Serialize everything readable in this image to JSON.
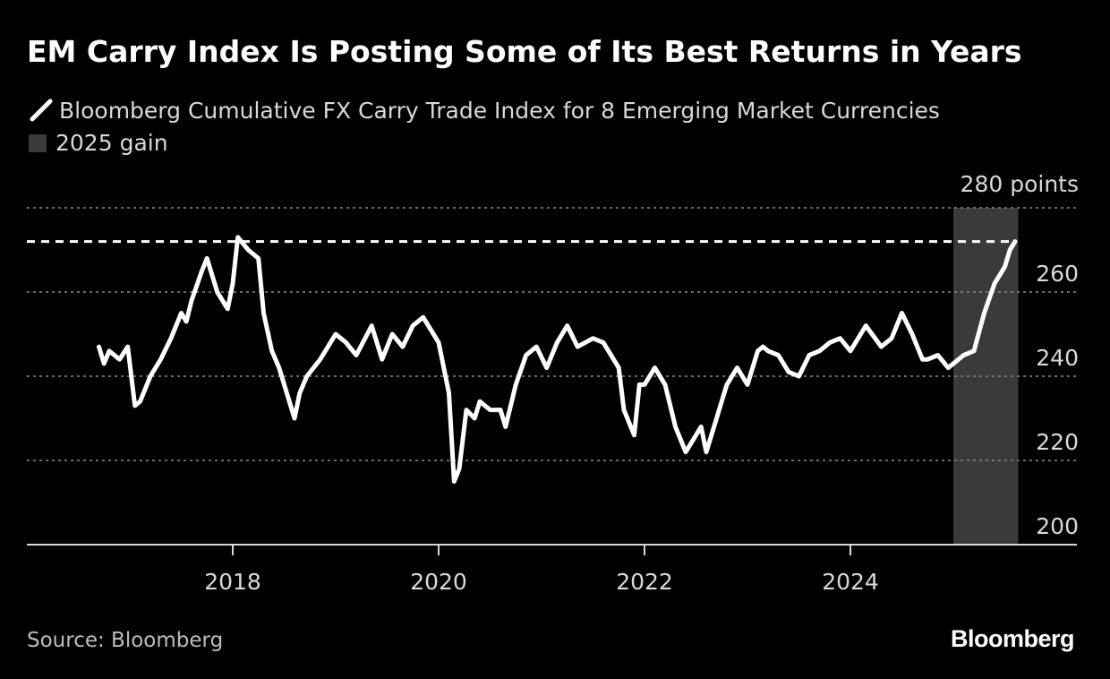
{
  "title": "EM Carry Index Is Posting Some of Its Best Returns in Years",
  "legend": {
    "series_label": "Bloomberg Cumulative FX Carry Trade Index for 8 Emerging Market Currencies",
    "shade_label": "2025 gain"
  },
  "source": "Source: Bloomberg",
  "brand": "Bloomberg",
  "colors": {
    "background": "#000000",
    "line": "#ffffff",
    "grid": "#8a8a8a",
    "shade": "#3a3a3a",
    "axis_text": "#d9d9d9"
  },
  "chart_data": {
    "type": "line",
    "title": "EM Carry Index Is Posting Some of Its Best Returns in Years",
    "ylabel": "points",
    "y_unit_label": "280 points",
    "ylim": [
      200,
      280
    ],
    "xlim": [
      2016.0,
      2026.2
    ],
    "yticks": [
      200,
      220,
      240,
      260
    ],
    "xticks": [
      {
        "value": 2018.0,
        "label": "2018"
      },
      {
        "value": 2020.0,
        "label": "2020"
      },
      {
        "value": 2022.0,
        "label": "2022"
      },
      {
        "value": 2024.0,
        "label": "2024"
      }
    ],
    "grid": true,
    "reference_line": {
      "y": 272,
      "style": "dashed",
      "label": ""
    },
    "shaded_region": {
      "x_start": 2025.0,
      "x_end": 2025.63,
      "label": "2025 gain"
    },
    "series": [
      {
        "name": "Bloomberg Cumulative FX Carry Trade Index for 8 Emerging Market Currencies",
        "x": [
          2016.7,
          2016.75,
          2016.8,
          2016.9,
          2016.98,
          2017.0,
          2017.05,
          2017.1,
          2017.2,
          2017.3,
          2017.4,
          2017.5,
          2017.55,
          2017.6,
          2017.7,
          2017.75,
          2017.85,
          2017.95,
          2018.0,
          2018.05,
          2018.15,
          2018.25,
          2018.3,
          2018.38,
          2018.45,
          2018.5,
          2018.6,
          2018.65,
          2018.72,
          2018.85,
          2019.0,
          2019.1,
          2019.2,
          2019.35,
          2019.45,
          2019.55,
          2019.65,
          2019.75,
          2019.85,
          2019.95,
          2020.0,
          2020.1,
          2020.15,
          2020.2,
          2020.27,
          2020.35,
          2020.4,
          2020.5,
          2020.6,
          2020.65,
          2020.75,
          2020.85,
          2020.95,
          2021.05,
          2021.15,
          2021.25,
          2021.35,
          2021.5,
          2021.6,
          2021.75,
          2021.8,
          2021.9,
          2021.95,
          2022.0,
          2022.1,
          2022.2,
          2022.3,
          2022.4,
          2022.5,
          2022.55,
          2022.6,
          2022.7,
          2022.75,
          2022.8,
          2022.9,
          2023.0,
          2023.1,
          2023.15,
          2023.2,
          2023.3,
          2023.4,
          2023.5,
          2023.6,
          2023.7,
          2023.8,
          2023.9,
          2024.0,
          2024.15,
          2024.3,
          2024.4,
          2024.5,
          2024.6,
          2024.7,
          2024.75,
          2024.85,
          2024.95,
          2025.0,
          2025.1,
          2025.2,
          2025.3,
          2025.4,
          2025.5,
          2025.55,
          2025.6
        ],
        "values": [
          247,
          243,
          246,
          244,
          247,
          243,
          233,
          234,
          240,
          244,
          249,
          255,
          253,
          258,
          265,
          268,
          260,
          256,
          262,
          273,
          270,
          268,
          255,
          246,
          242,
          238,
          230,
          236,
          240,
          244,
          250,
          248,
          245,
          252,
          244,
          250,
          247,
          252,
          254,
          250,
          248,
          236,
          215,
          218,
          232,
          230,
          234,
          232,
          232,
          228,
          238,
          245,
          247,
          242,
          248,
          252,
          247,
          249,
          248,
          242,
          232,
          226,
          238,
          238,
          242,
          238,
          228,
          222,
          226,
          228,
          222,
          230,
          234,
          238,
          242,
          238,
          246,
          247,
          246,
          245,
          241,
          240,
          245,
          246,
          248,
          249,
          246,
          252,
          247,
          249,
          255,
          250,
          244,
          244,
          245,
          242,
          243,
          245,
          246,
          255,
          262,
          266,
          270,
          272
        ]
      }
    ]
  }
}
